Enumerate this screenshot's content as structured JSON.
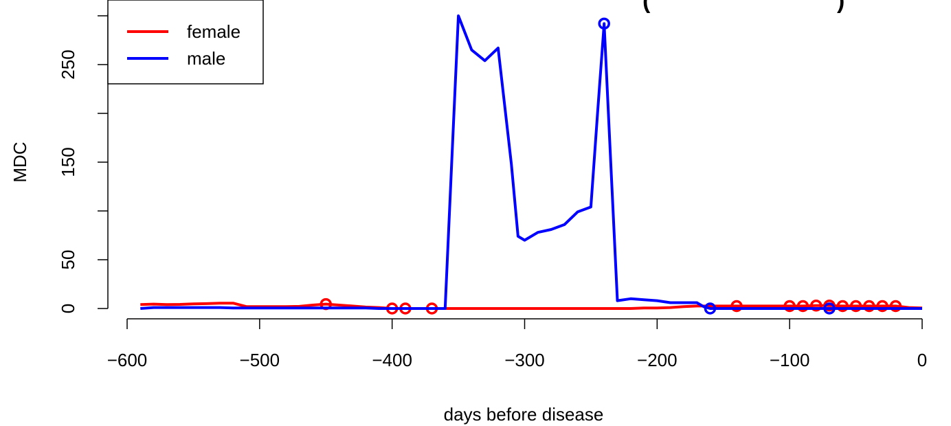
{
  "chart_data": {
    "type": "line",
    "title": "(",
    "title_suffix": ")",
    "xlabel": "days before disease",
    "ylabel": "MDC",
    "xlim": [
      -600,
      0
    ],
    "ylim": [
      -5,
      300
    ],
    "xticks": [
      -600,
      -500,
      -400,
      -300,
      -200,
      -100,
      0
    ],
    "xtick_labels": [
      "−600",
      "−500",
      "−400",
      "−300",
      "−200",
      "−100",
      "0"
    ],
    "yticks": [
      0,
      50,
      100,
      150,
      200,
      250
    ],
    "ytick_labels": [
      "0",
      "50",
      "",
      "150",
      "",
      "250"
    ],
    "grid": false,
    "legend_position": "top-left",
    "series": [
      {
        "name": "female",
        "color": "#ff0000",
        "x": [
          -590,
          -580,
          -570,
          -560,
          -550,
          -540,
          -530,
          -520,
          -510,
          -500,
          -490,
          -480,
          -470,
          -460,
          -450,
          -440,
          -430,
          -420,
          -410,
          -400,
          -390,
          -380,
          -370,
          -360,
          -350,
          -340,
          -330,
          -320,
          -310,
          -300,
          -290,
          -280,
          -270,
          -260,
          -250,
          -240,
          -230,
          -220,
          -210,
          -200,
          -190,
          -180,
          -170,
          -160,
          -150,
          -140,
          -130,
          -120,
          -110,
          -100,
          -90,
          -80,
          -70,
          -60,
          -50,
          -40,
          -30,
          -20,
          -10,
          0
        ],
        "y": [
          4,
          4.5,
          4,
          4.2,
          4.8,
          5,
          5.5,
          5.5,
          2,
          2,
          2,
          2,
          2.2,
          3.5,
          4.5,
          3.5,
          2.5,
          1.5,
          1,
          0,
          0,
          0,
          0,
          0,
          0,
          0,
          0,
          0,
          0,
          0,
          0,
          0,
          0,
          0,
          0,
          0,
          0,
          0,
          0.5,
          0.5,
          1,
          2,
          2.5,
          2.5,
          2.5,
          2.5,
          2.5,
          2.5,
          2.5,
          2.5,
          2.5,
          3,
          3,
          2.5,
          2.5,
          2.5,
          2.5,
          2.5,
          1,
          0.5
        ],
        "markers_x": [
          -450,
          -400,
          -390,
          -370,
          -140,
          -100,
          -90,
          -80,
          -70,
          -60,
          -50,
          -40,
          -30,
          -20
        ],
        "markers_y": [
          4.5,
          0,
          0,
          0,
          2.5,
          2.5,
          2.5,
          3,
          3,
          2.5,
          2.5,
          2.5,
          2.5,
          2.5
        ]
      },
      {
        "name": "male",
        "color": "#0000ff",
        "x": [
          -590,
          -580,
          -570,
          -560,
          -550,
          -540,
          -530,
          -520,
          -510,
          -500,
          -490,
          -480,
          -470,
          -460,
          -450,
          -440,
          -430,
          -420,
          -410,
          -400,
          -390,
          -380,
          -370,
          -360,
          -355,
          -350,
          -340,
          -330,
          -320,
          -310,
          -305,
          -300,
          -290,
          -280,
          -270,
          -260,
          -250,
          -245,
          -240,
          -235,
          -230,
          -220,
          -210,
          -200,
          -190,
          -180,
          -170,
          -165,
          -160,
          -150,
          -140,
          -130,
          -120,
          -110,
          -100,
          -90,
          -80,
          -70,
          -60,
          -50,
          -40,
          -30,
          -20,
          -10,
          0
        ],
        "y": [
          0,
          1,
          1,
          1,
          1,
          1,
          1,
          0.5,
          0.5,
          0.5,
          0.5,
          0.5,
          0.5,
          0.5,
          0.5,
          0.5,
          0.5,
          0.5,
          0,
          0,
          0,
          0,
          0,
          0,
          150,
          300,
          265,
          254,
          267,
          148,
          74,
          70,
          78,
          81,
          86,
          99,
          104,
          200,
          292,
          150,
          8,
          10,
          9,
          8,
          6,
          6,
          6,
          2,
          0,
          0,
          0,
          0,
          0,
          0,
          0,
          0,
          0,
          0,
          0,
          0,
          0,
          0,
          0,
          0,
          0
        ],
        "markers_x": [
          -240,
          -160,
          -70
        ],
        "markers_y": [
          292,
          0,
          0
        ]
      }
    ]
  }
}
